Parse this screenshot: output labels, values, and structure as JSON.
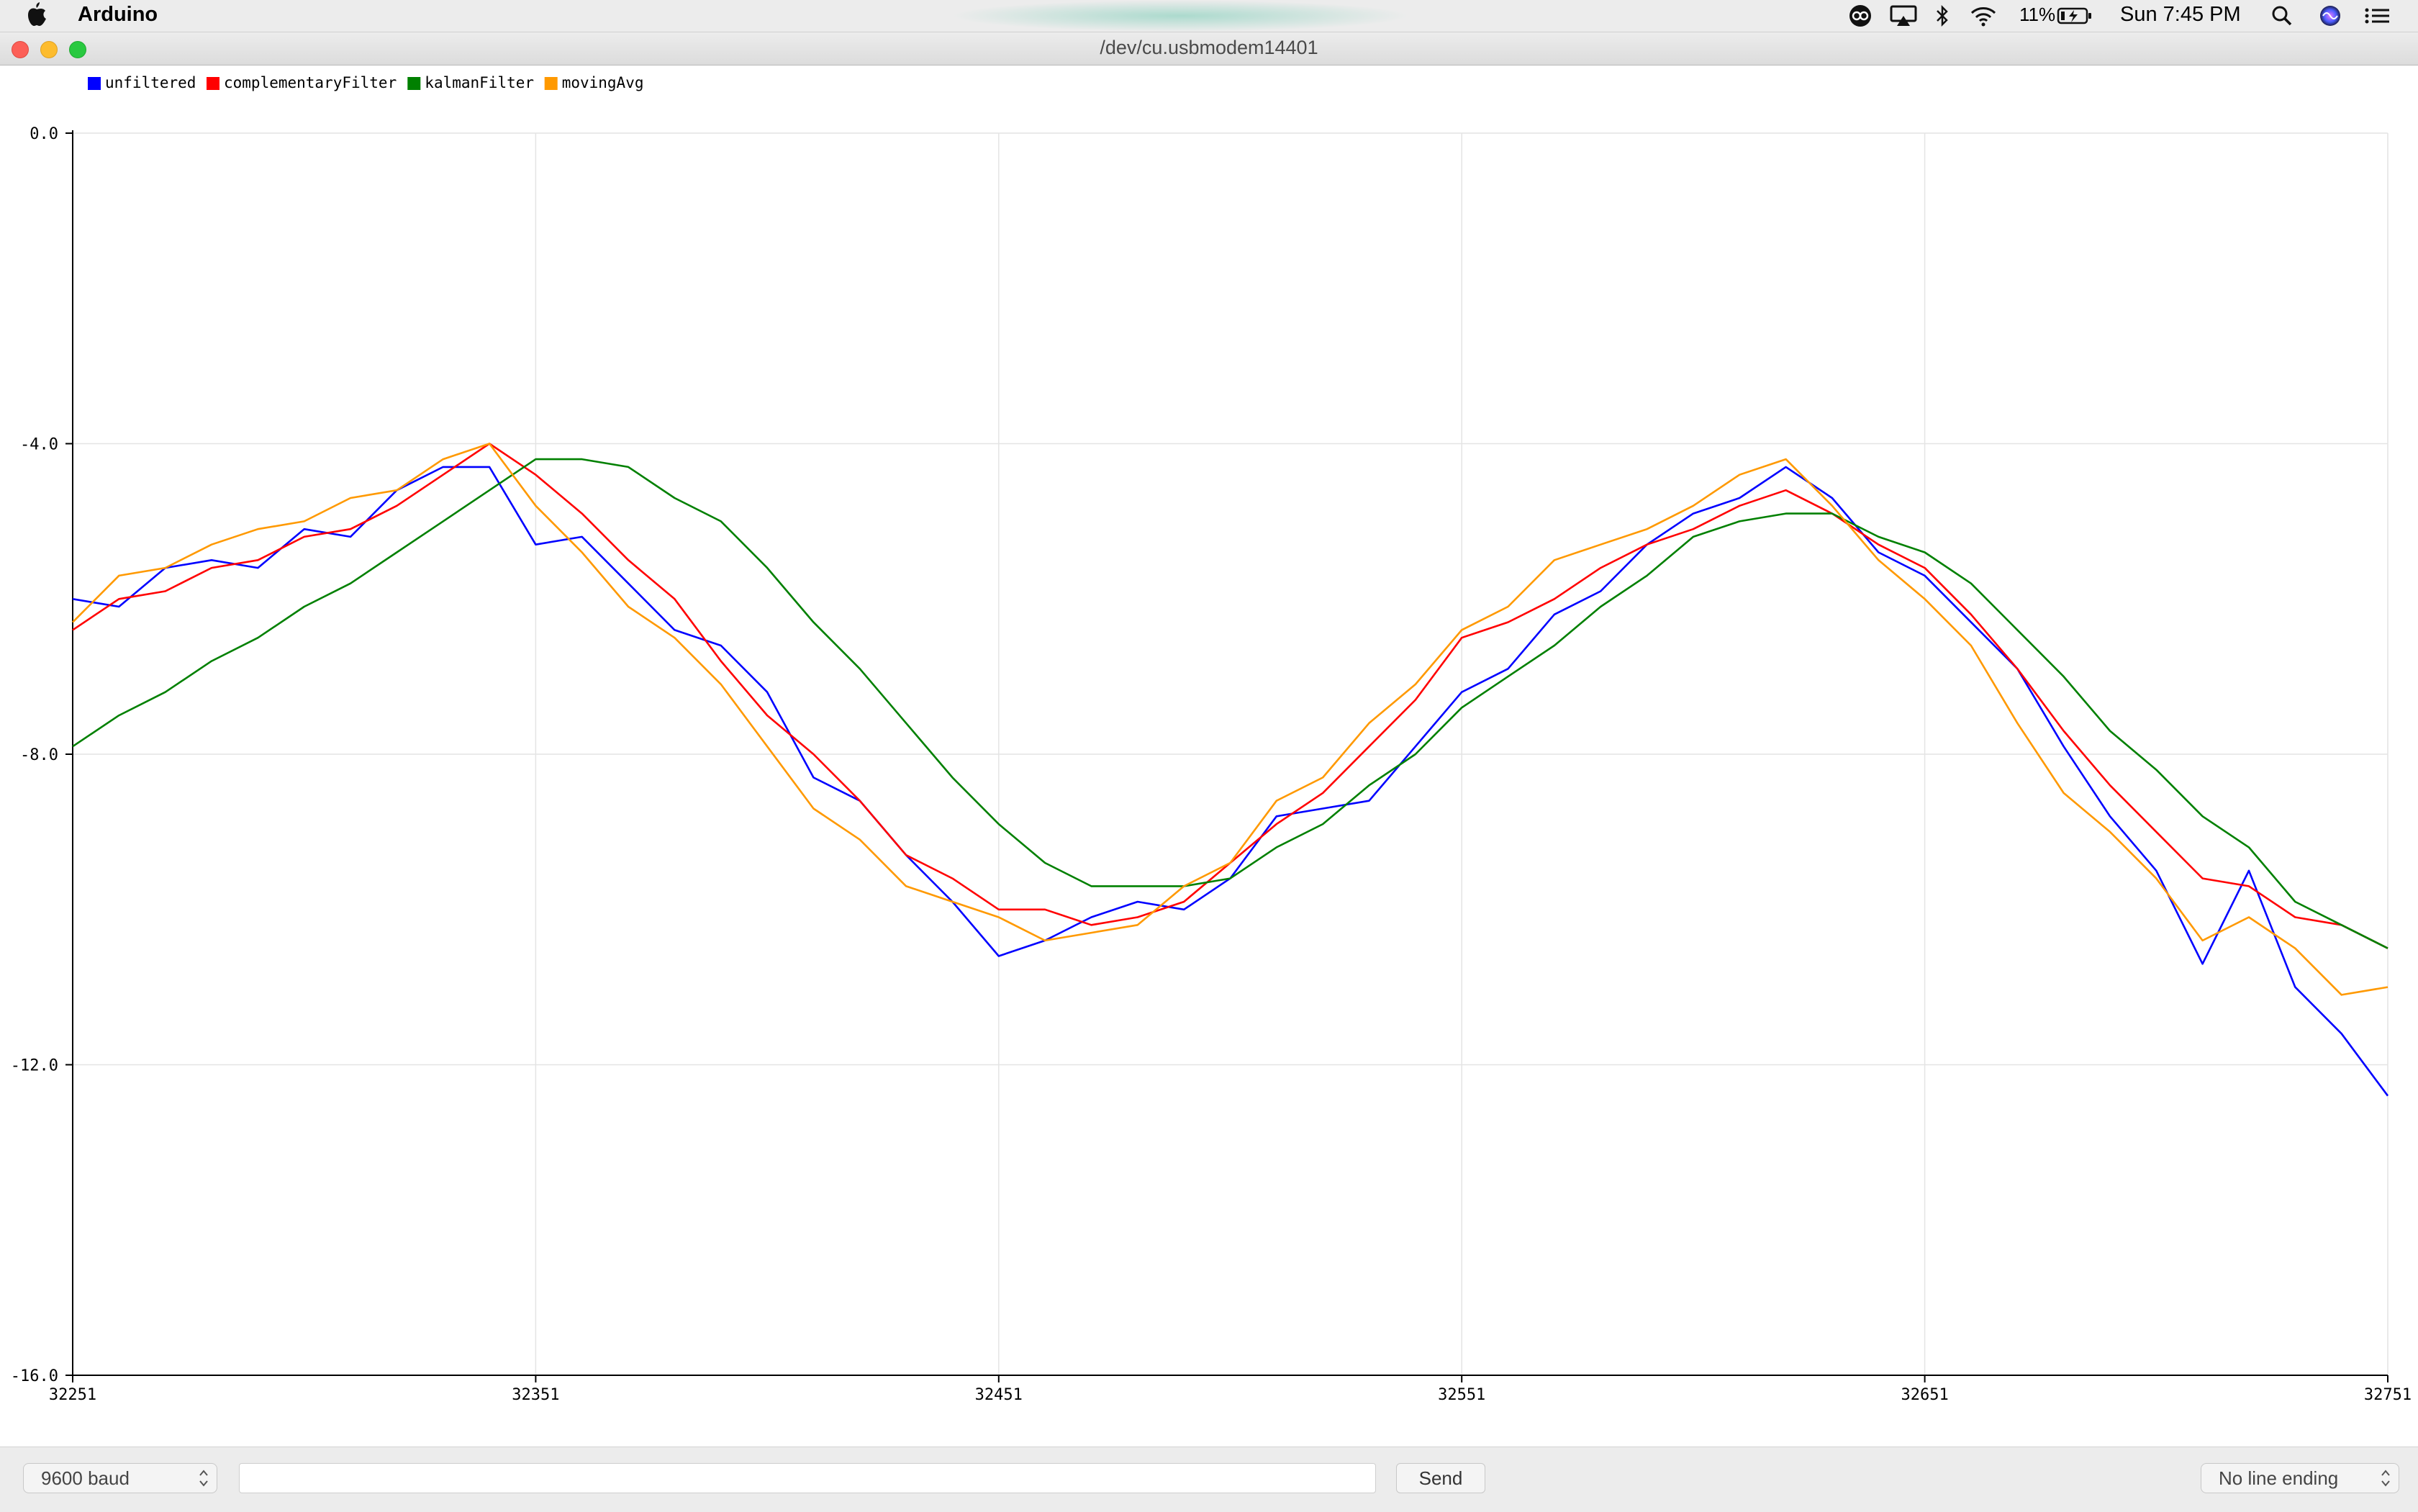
{
  "menubar": {
    "app_name": "Arduino",
    "battery_pct": "11%",
    "clock": "Sun 7:45 PM",
    "icons": [
      "apple-icon",
      "creative-cloud-icon",
      "airplay-icon",
      "bluetooth-icon",
      "wifi-icon",
      "battery-icon",
      "search-icon",
      "siri-icon",
      "menu-list-icon"
    ]
  },
  "window": {
    "title": "/dev/cu.usbmodem14401"
  },
  "colors": {
    "unfiltered": "#0000ff",
    "complementaryFilter": "#ff0000",
    "kalmanFilter": "#008000",
    "movingAvg": "#ff9900"
  },
  "chart_data": {
    "type": "line",
    "legend_placement": "top-left",
    "grid": true,
    "xlim": [
      32251,
      32751
    ],
    "ylim": [
      -16.0,
      0.0
    ],
    "x_ticks": [
      "32251",
      "32351",
      "32451",
      "32551",
      "32651",
      "32751"
    ],
    "y_ticks": [
      "0.0",
      "-4.0",
      "-8.0",
      "-12.0",
      "-16.0"
    ],
    "x": [
      32251,
      32261,
      32271,
      32281,
      32291,
      32301,
      32311,
      32321,
      32331,
      32341,
      32351,
      32361,
      32371,
      32381,
      32391,
      32401,
      32411,
      32421,
      32431,
      32441,
      32451,
      32461,
      32471,
      32481,
      32491,
      32501,
      32511,
      32521,
      32531,
      32541,
      32551,
      32561,
      32571,
      32581,
      32591,
      32601,
      32611,
      32621,
      32631,
      32641,
      32651,
      32661,
      32671,
      32681,
      32691,
      32701,
      32711,
      32721,
      32731,
      32741,
      32751
    ],
    "series": [
      {
        "name": "unfiltered",
        "values": [
          -6.0,
          -6.1,
          -5.6,
          -5.5,
          -5.6,
          -5.1,
          -5.2,
          -4.6,
          -4.3,
          -4.3,
          -5.3,
          -5.2,
          -5.8,
          -6.4,
          -6.6,
          -7.2,
          -8.3,
          -8.6,
          -9.3,
          -9.9,
          -10.6,
          -10.4,
          -10.1,
          -9.9,
          -10.0,
          -9.6,
          -8.8,
          -8.7,
          -8.6,
          -7.9,
          -7.2,
          -6.9,
          -6.2,
          -5.9,
          -5.3,
          -4.9,
          -4.7,
          -4.3,
          -4.7,
          -5.4,
          -5.7,
          -6.3,
          -6.9,
          -7.9,
          -8.8,
          -9.5,
          -10.7,
          -9.5,
          -11.0,
          -11.6,
          -12.4
        ]
      },
      {
        "name": "complementaryFilter",
        "values": [
          -6.4,
          -6.0,
          -5.9,
          -5.6,
          -5.5,
          -5.2,
          -5.1,
          -4.8,
          -4.4,
          -4.0,
          -4.4,
          -4.9,
          -5.5,
          -6.0,
          -6.8,
          -7.5,
          -8.0,
          -8.6,
          -9.3,
          -9.6,
          -10.0,
          -10.0,
          -10.2,
          -10.1,
          -9.9,
          -9.4,
          -8.9,
          -8.5,
          -7.9,
          -7.3,
          -6.5,
          -6.3,
          -6.0,
          -5.6,
          -5.3,
          -5.1,
          -4.8,
          -4.6,
          -4.9,
          -5.3,
          -5.6,
          -6.2,
          -6.9,
          -7.7,
          -8.4,
          -9.0,
          -9.6,
          -9.7,
          -10.1,
          -10.2,
          -10.5
        ]
      },
      {
        "name": "kalmanFilter",
        "values": [
          -7.9,
          -7.5,
          -7.2,
          -6.8,
          -6.5,
          -6.1,
          -5.8,
          -5.4,
          -5.0,
          -4.6,
          -4.2,
          -4.2,
          -4.3,
          -4.7,
          -5.0,
          -5.6,
          -6.3,
          -6.9,
          -7.6,
          -8.3,
          -8.9,
          -9.4,
          -9.7,
          -9.7,
          -9.7,
          -9.6,
          -9.2,
          -8.9,
          -8.4,
          -8.0,
          -7.4,
          -7.0,
          -6.6,
          -6.1,
          -5.7,
          -5.2,
          -5.0,
          -4.9,
          -4.9,
          -5.2,
          -5.4,
          -5.8,
          -6.4,
          -7.0,
          -7.7,
          -8.2,
          -8.8,
          -9.2,
          -9.9,
          -10.2,
          -10.5
        ]
      },
      {
        "name": "movingAvg",
        "values": [
          -6.3,
          -5.7,
          -5.6,
          -5.3,
          -5.1,
          -5.0,
          -4.7,
          -4.6,
          -4.2,
          -4.0,
          -4.8,
          -5.4,
          -6.1,
          -6.5,
          -7.1,
          -7.9,
          -8.7,
          -9.1,
          -9.7,
          -9.9,
          -10.1,
          -10.4,
          -10.3,
          -10.2,
          -9.7,
          -9.4,
          -8.6,
          -8.3,
          -7.6,
          -7.1,
          -6.4,
          -6.1,
          -5.5,
          -5.3,
          -5.1,
          -4.8,
          -4.4,
          -4.2,
          -4.8,
          -5.5,
          -6.0,
          -6.6,
          -7.6,
          -8.5,
          -9.0,
          -9.6,
          -10.4,
          -10.1,
          -10.5,
          -11.1,
          -11.0
        ]
      }
    ]
  },
  "bottom": {
    "baud": "9600 baud",
    "send_value": "",
    "send_label": "Send",
    "line_ending": "No line ending"
  }
}
